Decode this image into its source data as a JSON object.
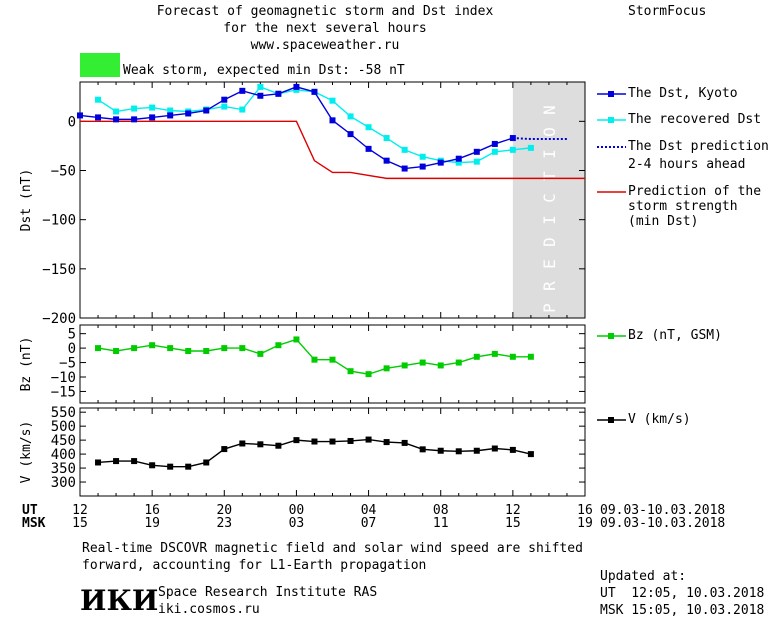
{
  "header": {
    "title_line1": "Forecast of geomagnetic storm and Dst index",
    "title_line2": "for the next several hours",
    "title_line3": "www.spaceweather.ru",
    "app_name": "StormFocus",
    "status_text": "Weak storm, expected min Dst: -58 nT",
    "status_color": "#33ee33"
  },
  "colors": {
    "dst": "#0000dd",
    "recovered": "#00eeee",
    "prediction_band": "#dddddd",
    "strength": "#dd0000",
    "bz": "#00cc00",
    "v": "#000000"
  },
  "chart_data": [
    {
      "type": "line",
      "name": "dst-panel",
      "ylabel": "Dst (nT)",
      "ylim": [
        -200,
        40
      ],
      "yticks": [
        0,
        -50,
        -100,
        -150,
        -200
      ],
      "xlim_hours": [
        0,
        28
      ],
      "prediction_band_hours": [
        24,
        28
      ],
      "prediction_label": "PREDICTION",
      "series": [
        {
          "name": "The Dst, Kyoto",
          "x": [
            0,
            1,
            2,
            3,
            4,
            5,
            6,
            7,
            8,
            9,
            10,
            11,
            12,
            13,
            14,
            15,
            16,
            17,
            18,
            19,
            20,
            21,
            22,
            23,
            24
          ],
          "values": [
            6,
            4,
            2,
            2,
            4,
            6,
            8,
            11,
            22,
            31,
            26,
            28,
            35,
            30,
            1,
            -13,
            -28,
            -40,
            -48,
            -46,
            -42,
            -38,
            -31,
            -23,
            -17
          ]
        },
        {
          "name": "The recovered Dst",
          "x": [
            1,
            2,
            3,
            4,
            5,
            6,
            7,
            8,
            9,
            10,
            11,
            12,
            13,
            14,
            15,
            16,
            17,
            18,
            19,
            20,
            21,
            22,
            23,
            24,
            25
          ],
          "values": [
            22,
            10,
            13,
            14,
            11,
            10,
            12,
            15,
            12,
            35,
            28,
            32,
            30,
            21,
            5,
            -6,
            -17,
            -29,
            -36,
            -40,
            -42,
            -41,
            -31,
            -29,
            -27
          ]
        },
        {
          "name": "The Dst prediction 2-4 hours ahead",
          "x": [
            24,
            25,
            26,
            27
          ],
          "values": [
            -17,
            -18,
            -18,
            -18
          ]
        },
        {
          "name": "Prediction of the storm strength (min Dst)",
          "x": [
            0,
            12,
            13,
            14,
            15,
            16,
            17,
            18,
            28
          ],
          "values": [
            0,
            0,
            -40,
            -52,
            -52,
            -55,
            -58,
            -58,
            -58
          ]
        }
      ]
    },
    {
      "type": "line",
      "name": "bz-panel",
      "ylabel": "Bz (nT)",
      "ylim": [
        -19,
        8
      ],
      "yticks": [
        5,
        0,
        -5,
        -10,
        -15
      ],
      "series": [
        {
          "name": "Bz (nT, GSM)",
          "x": [
            1,
            2,
            3,
            4,
            5,
            6,
            7,
            8,
            9,
            10,
            11,
            12,
            13,
            14,
            15,
            16,
            17,
            18,
            19,
            20,
            21,
            22,
            23,
            24,
            25
          ],
          "values": [
            0,
            -1,
            0,
            1,
            0,
            -1,
            -1,
            0,
            0,
            -2,
            1,
            3,
            -4,
            -4,
            -8,
            -9,
            -7,
            -6,
            -5,
            -6,
            -5,
            -3,
            -2,
            -3,
            -3
          ]
        }
      ]
    },
    {
      "type": "line",
      "name": "v-panel",
      "ylabel": "V (km/s)",
      "ylim": [
        250,
        565
      ],
      "yticks": [
        550,
        500,
        450,
        400,
        350,
        300
      ],
      "series": [
        {
          "name": "V (km/s)",
          "x": [
            1,
            2,
            3,
            4,
            5,
            6,
            7,
            8,
            9,
            10,
            11,
            12,
            13,
            14,
            15,
            16,
            17,
            18,
            19,
            20,
            21,
            22,
            23,
            24,
            25
          ],
          "values": [
            370,
            375,
            375,
            360,
            355,
            355,
            370,
            418,
            438,
            435,
            430,
            450,
            445,
            445,
            447,
            452,
            443,
            440,
            417,
            412,
            410,
            412,
            420,
            415,
            400
          ]
        }
      ]
    }
  ],
  "axis": {
    "ut_label": "UT",
    "msk_label": "MSK",
    "ut_ticks": [
      "12",
      "16",
      "20",
      "00",
      "04",
      "08",
      "12",
      "16"
    ],
    "msk_ticks": [
      "15",
      "19",
      "23",
      "03",
      "07",
      "11",
      "15",
      "19"
    ],
    "date_range_ut": "09.03-10.03.2018",
    "date_range_msk": "09.03-10.03.2018"
  },
  "legend": {
    "dst_kyoto": "The Dst, Kyoto",
    "recovered": "The recovered Dst",
    "pred_line1": "The Dst prediction",
    "pred_line2": "2-4 hours ahead",
    "strength_line1": "Prediction of the",
    "strength_line2": "storm strength",
    "strength_line3": "(min Dst)",
    "bz": "Bz (nT, GSM)",
    "v": "V (km/s)"
  },
  "footer": {
    "note_line1": "Real-time DSCOVR magnetic field and solar wind speed are shifted",
    "note_line2": "forward, accounting for L1-Earth propagation",
    "logo_text": "ИКИ",
    "institute": "Space Research Institute RAS",
    "institute_url": "iki.cosmos.ru",
    "updated_label": "Updated at:",
    "updated_ut": "UT  12:05, 10.03.2018",
    "updated_msk": "MSK 15:05, 10.03.2018"
  }
}
